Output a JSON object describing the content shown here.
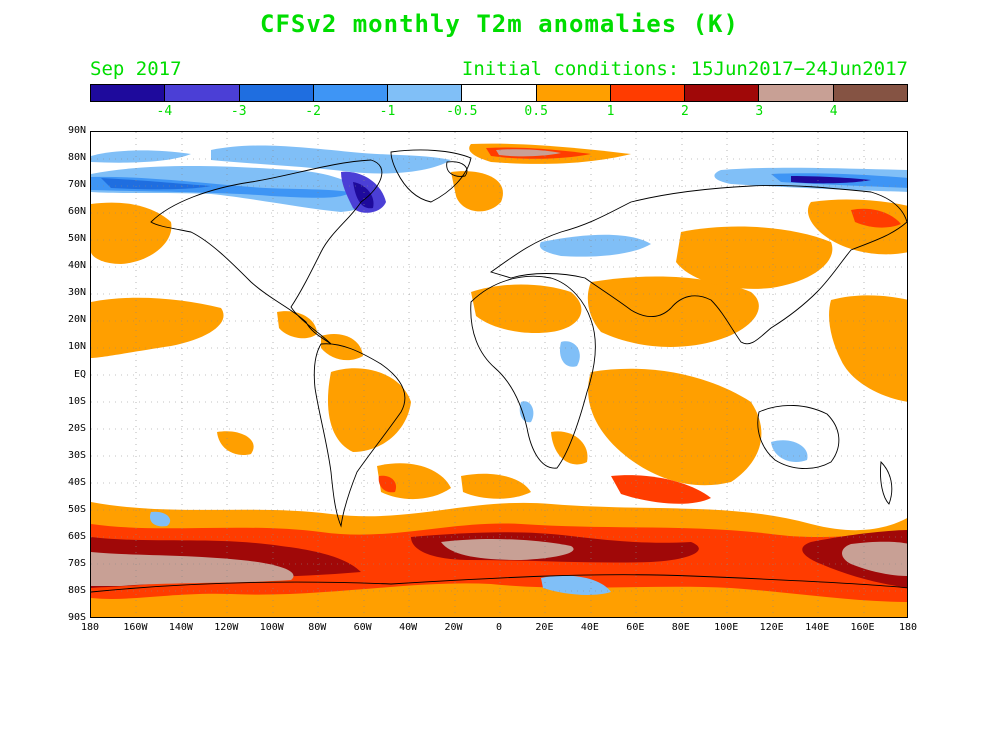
{
  "header": {
    "title": "CFSv2 monthly T2m anomalies (K)",
    "valid_month": "Sep 2017",
    "initial_conditions": "Initial conditions: 15Jun2017−24Jun2017"
  },
  "colorbar": {
    "colors": [
      "#1e0a9c",
      "#4b3fd6",
      "#1f6ee0",
      "#3e95f5",
      "#80bff7",
      "#ffffff",
      "#ff9f00",
      "#ff3c00",
      "#a00808",
      "#c8a095",
      "#855343"
    ],
    "labels": [
      "-4",
      "-3",
      "-2",
      "-1",
      "-0.5",
      "0.5",
      "1",
      "2",
      "3",
      "4"
    ]
  },
  "axes": {
    "lat_labels": [
      "90N",
      "80N",
      "70N",
      "60N",
      "50N",
      "40N",
      "30N",
      "20N",
      "10N",
      "EQ",
      "10S",
      "20S",
      "30S",
      "40S",
      "50S",
      "60S",
      "70S",
      "80S",
      "90S"
    ],
    "lon_labels": [
      "180",
      "160W",
      "140W",
      "120W",
      "100W",
      "80W",
      "60W",
      "40W",
      "20W",
      "0",
      "20E",
      "40E",
      "60E",
      "80E",
      "100E",
      "120E",
      "140E",
      "160E",
      "180"
    ],
    "lat_range": [
      -90,
      90
    ],
    "lon_range": [
      -180,
      180
    ],
    "grid": "dotted"
  },
  "map": {
    "field": "2m temperature anomaly",
    "units": "K",
    "projection": "cylindrical equidistant",
    "coastline_color": "#000000"
  }
}
